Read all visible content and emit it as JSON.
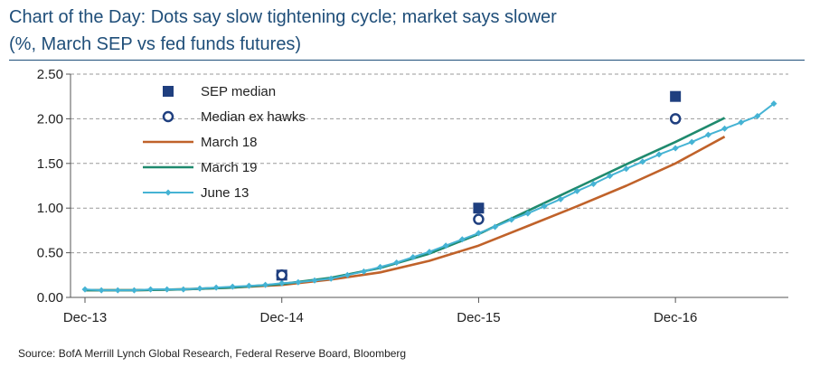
{
  "chart_data": {
    "type": "line",
    "title": "Chart of the Day: Dots say slow tightening cycle; market says slower",
    "subtitle": "(%, March SEP vs fed funds futures)",
    "source": "Source: BofA Merrill Lynch Global Research, Federal Reserve Board, Bloomberg",
    "x_ticks": [
      "Dec-13",
      "Dec-14",
      "Dec-15",
      "Dec-16"
    ],
    "x_range": [
      "2013-12",
      "2017-06"
    ],
    "y_ticks": [
      "0.00",
      "0.50",
      "1.00",
      "1.50",
      "2.00",
      "2.50"
    ],
    "ylim": [
      0,
      2.5
    ],
    "grid": "horizontal dashed",
    "legend_position": "top-left",
    "colors": {
      "sep": "#1f3f7f",
      "ex_hawks": "#1f3f7f",
      "march18": "#c0622a",
      "march19": "#1f8a6e",
      "june13": "#45b3d4"
    },
    "series": [
      {
        "name": "SEP median",
        "key": "sep",
        "kind": "marker-square",
        "points": [
          [
            "2014-12",
            0.25
          ],
          [
            "2015-12",
            1.0
          ],
          [
            "2016-12",
            2.25
          ]
        ]
      },
      {
        "name": "Median ex hawks",
        "key": "ex_hawks",
        "kind": "marker-circle",
        "points": [
          [
            "2014-12",
            0.25
          ],
          [
            "2015-12",
            0.875
          ],
          [
            "2016-12",
            2.0
          ]
        ]
      },
      {
        "name": "March 18",
        "key": "march18",
        "kind": "line",
        "points": [
          [
            "2013-12",
            0.08
          ],
          [
            "2014-03",
            0.08
          ],
          [
            "2014-06",
            0.09
          ],
          [
            "2014-09",
            0.11
          ],
          [
            "2014-12",
            0.14
          ],
          [
            "2015-03",
            0.2
          ],
          [
            "2015-06",
            0.28
          ],
          [
            "2015-09",
            0.41
          ],
          [
            "2015-12",
            0.58
          ],
          [
            "2016-03",
            0.8
          ],
          [
            "2016-06",
            1.02
          ],
          [
            "2016-09",
            1.25
          ],
          [
            "2016-12",
            1.5
          ],
          [
            "2017-03",
            1.8
          ]
        ]
      },
      {
        "name": "March 19",
        "key": "march19",
        "kind": "line",
        "points": [
          [
            "2013-12",
            0.08
          ],
          [
            "2014-03",
            0.08
          ],
          [
            "2014-06",
            0.09
          ],
          [
            "2014-09",
            0.11
          ],
          [
            "2014-12",
            0.15
          ],
          [
            "2015-03",
            0.22
          ],
          [
            "2015-06",
            0.33
          ],
          [
            "2015-09",
            0.49
          ],
          [
            "2015-12",
            0.71
          ],
          [
            "2016-03",
            0.97
          ],
          [
            "2016-06",
            1.23
          ],
          [
            "2016-09",
            1.49
          ],
          [
            "2016-12",
            1.74
          ],
          [
            "2017-03",
            2.01
          ]
        ]
      },
      {
        "name": "June 13",
        "key": "june13",
        "kind": "line-marker",
        "points": [
          [
            "2013-12",
            0.09
          ],
          [
            "2014-01",
            0.08
          ],
          [
            "2014-02",
            0.08
          ],
          [
            "2014-03",
            0.08
          ],
          [
            "2014-04",
            0.09
          ],
          [
            "2014-05",
            0.09
          ],
          [
            "2014-06",
            0.09
          ],
          [
            "2014-07",
            0.1
          ],
          [
            "2014-08",
            0.11
          ],
          [
            "2014-09",
            0.12
          ],
          [
            "2014-10",
            0.13
          ],
          [
            "2014-11",
            0.14
          ],
          [
            "2014-12",
            0.16
          ],
          [
            "2015-01",
            0.17
          ],
          [
            "2015-02",
            0.19
          ],
          [
            "2015-03",
            0.21
          ],
          [
            "2015-04",
            0.25
          ],
          [
            "2015-05",
            0.29
          ],
          [
            "2015-06",
            0.34
          ],
          [
            "2015-07",
            0.39
          ],
          [
            "2015-08",
            0.45
          ],
          [
            "2015-09",
            0.51
          ],
          [
            "2015-10",
            0.58
          ],
          [
            "2015-11",
            0.65
          ],
          [
            "2015-12",
            0.72
          ],
          [
            "2016-01",
            0.79
          ],
          [
            "2016-02",
            0.87
          ],
          [
            "2016-03",
            0.94
          ],
          [
            "2016-04",
            1.02
          ],
          [
            "2016-05",
            1.1
          ],
          [
            "2016-06",
            1.19
          ],
          [
            "2016-07",
            1.27
          ],
          [
            "2016-08",
            1.36
          ],
          [
            "2016-09",
            1.44
          ],
          [
            "2016-10",
            1.52
          ],
          [
            "2016-11",
            1.6
          ],
          [
            "2016-12",
            1.67
          ],
          [
            "2017-01",
            1.74
          ],
          [
            "2017-02",
            1.82
          ],
          [
            "2017-03",
            1.89
          ],
          [
            "2017-04",
            1.96
          ],
          [
            "2017-05",
            2.03
          ],
          [
            "2017-06",
            2.17
          ]
        ]
      }
    ]
  }
}
